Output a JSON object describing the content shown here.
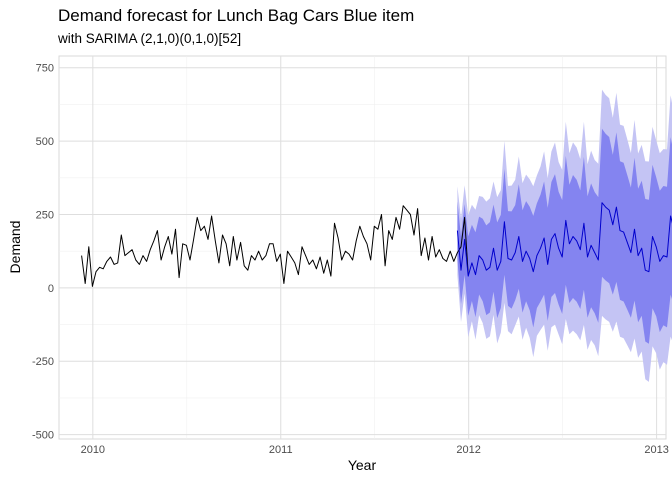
{
  "chart_data": {
    "type": "line",
    "title": "Demand forecast for Lunch Bag Cars Blue item",
    "subtitle": "with SARIMA (2,1,0)(0,1,0)[52]",
    "xlabel": "Year",
    "ylabel": "Demand",
    "xlim": [
      2009.82,
      2013.05
    ],
    "ylim": [
      -515,
      790
    ],
    "x_ticks": [
      2010,
      2011,
      2012,
      2013
    ],
    "x_tick_labels": [
      "2010",
      "2011",
      "2012",
      "2013"
    ],
    "y_ticks": [
      -500,
      -250,
      0,
      250,
      500,
      750
    ],
    "y_tick_labels": [
      "-500",
      "-250",
      "0",
      "250",
      "500",
      "750"
    ],
    "grid": true,
    "history": {
      "start": 2009.94,
      "step": 0.01923,
      "values": [
        110,
        15,
        140,
        5,
        55,
        70,
        65,
        90,
        105,
        80,
        85,
        180,
        110,
        120,
        130,
        95,
        80,
        110,
        90,
        130,
        160,
        195,
        95,
        140,
        175,
        115,
        200,
        35,
        150,
        145,
        95,
        165,
        240,
        195,
        210,
        165,
        245,
        160,
        85,
        180,
        150,
        75,
        175,
        95,
        155,
        75,
        60,
        110,
        95,
        125,
        95,
        110,
        150,
        150,
        90,
        115,
        15,
        125,
        105,
        85,
        45,
        140,
        110,
        80,
        95,
        65,
        105,
        50,
        95,
        40,
        220,
        170,
        95,
        125,
        115,
        95,
        160,
        210,
        175,
        150,
        95,
        210,
        200,
        250,
        75,
        195,
        165,
        240,
        200,
        280,
        265,
        250,
        180,
        270,
        110,
        170,
        95,
        175,
        105,
        130,
        100,
        90,
        125,
        90,
        120,
        140,
        240,
        45
      ]
    },
    "forecast": {
      "start": 2011.94,
      "step": 0.01923,
      "mean": [
        195,
        60,
        165,
        40,
        85,
        45,
        110,
        95,
        60,
        70,
        135,
        60,
        90,
        225,
        100,
        95,
        120,
        175,
        90,
        125,
        100,
        55,
        110,
        135,
        170,
        80,
        165,
        185,
        135,
        105,
        230,
        150,
        175,
        160,
        130,
        220,
        105,
        145,
        120,
        95,
        290,
        275,
        265,
        215,
        275,
        195,
        190,
        155,
        120,
        200,
        110,
        135,
        60,
        55,
        175,
        140,
        90,
        110,
        105,
        245,
        195,
        40
      ]
    },
    "series": [
      {
        "name": "",
        "role": "history",
        "color": "#000000"
      },
      {
        "name": "",
        "role": "forecast mean",
        "color": "#0000cc"
      },
      {
        "name": "",
        "role": "80% interval",
        "color": "#8484f0"
      },
      {
        "name": "",
        "role": "95% interval",
        "color": "#c4c4f4"
      }
    ]
  }
}
